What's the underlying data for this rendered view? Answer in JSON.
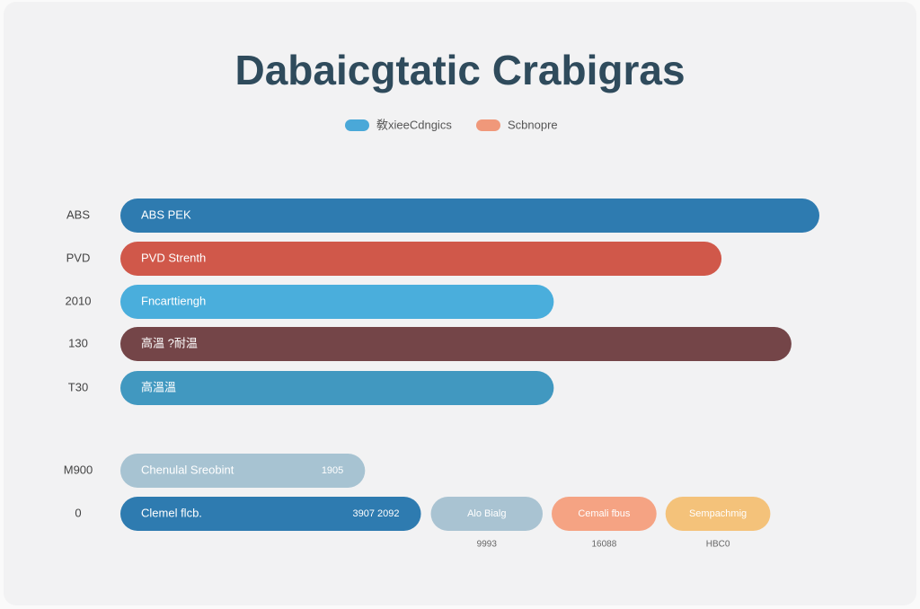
{
  "chart_data": {
    "type": "bar",
    "orientation": "horizontal",
    "title": "Dabaicgtatic Crabigras",
    "legend": [
      {
        "name": "敎xieeCdngics",
        "color": "#4aa8d8"
      },
      {
        "name": "Scbnopre",
        "color": "#f0987a"
      }
    ],
    "categories": [
      "ABS",
      "PVD",
      "2010",
      "130",
      "T30",
      "M900",
      "0"
    ],
    "bar_labels": [
      "ABS PEK",
      "PVD Strenth",
      "Fncarttiengh",
      "高溫 ?耐温",
      "高溫溫",
      "Chenulal Sreobint",
      "Clemel flcb."
    ],
    "bar_notes": [
      {
        "index": 5,
        "text": "1905"
      },
      {
        "index": 6,
        "text": "3907 2092"
      }
    ],
    "values": [
      100,
      86,
      62,
      96,
      62,
      35,
      43
    ],
    "colors": [
      "#2e7bb0",
      "#d0584a",
      "#4aaedc",
      "#744548",
      "#4198c0",
      "#a7c3d2",
      "#2e7bb0"
    ],
    "xlim": [
      0,
      100
    ],
    "pills": [
      {
        "label": "Alo Bialg",
        "value": 16,
        "note": "9993",
        "color": "#a9c3d2"
      },
      {
        "label": "Cemali fbus",
        "value": 15,
        "note": "16088",
        "color": "#f5a383"
      },
      {
        "label": "Sempachmig",
        "value": 15,
        "note": "HBC0",
        "color": "#f4c27a"
      }
    ]
  }
}
